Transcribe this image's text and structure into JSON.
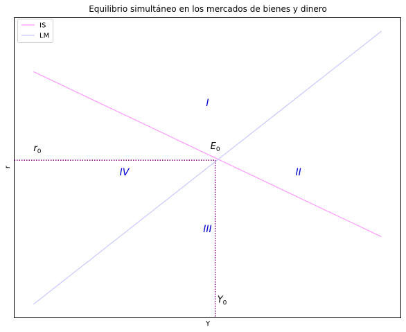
{
  "chart_data": {
    "type": "line",
    "title": "Equilibrio simultáneo en los mercados de bienes y dinero",
    "xlabel": "Y",
    "ylabel": "r",
    "xlim": [
      0,
      100
    ],
    "ylim": [
      0,
      100
    ],
    "grid": false,
    "ticks_visible": false,
    "legend": {
      "position": "top-left",
      "entries": [
        "IS",
        "LM"
      ]
    },
    "series": [
      {
        "name": "IS",
        "color": "#ff99ff",
        "x": [
          5,
          95
        ],
        "y": [
          82,
          27
        ]
      },
      {
        "name": "LM",
        "color": "#c8c8ff",
        "x": [
          5,
          95
        ],
        "y": [
          4.5,
          95.5
        ]
      }
    ],
    "equilibrium": {
      "label_main": "E",
      "label_sub": "0",
      "x": 52,
      "y": 52.5,
      "guide_color": "#800080"
    },
    "axis_markers": {
      "r_main": "r",
      "r_sub": "0",
      "y_main": "Y",
      "y_sub": "0"
    },
    "regions": [
      {
        "label": "I",
        "x": 50,
        "y": 70.5
      },
      {
        "label": "II",
        "x": 73.5,
        "y": 47.5
      },
      {
        "label": "III",
        "x": 50,
        "y": 28.5
      },
      {
        "label": "IV",
        "x": 28.5,
        "y": 47.5
      }
    ]
  }
}
